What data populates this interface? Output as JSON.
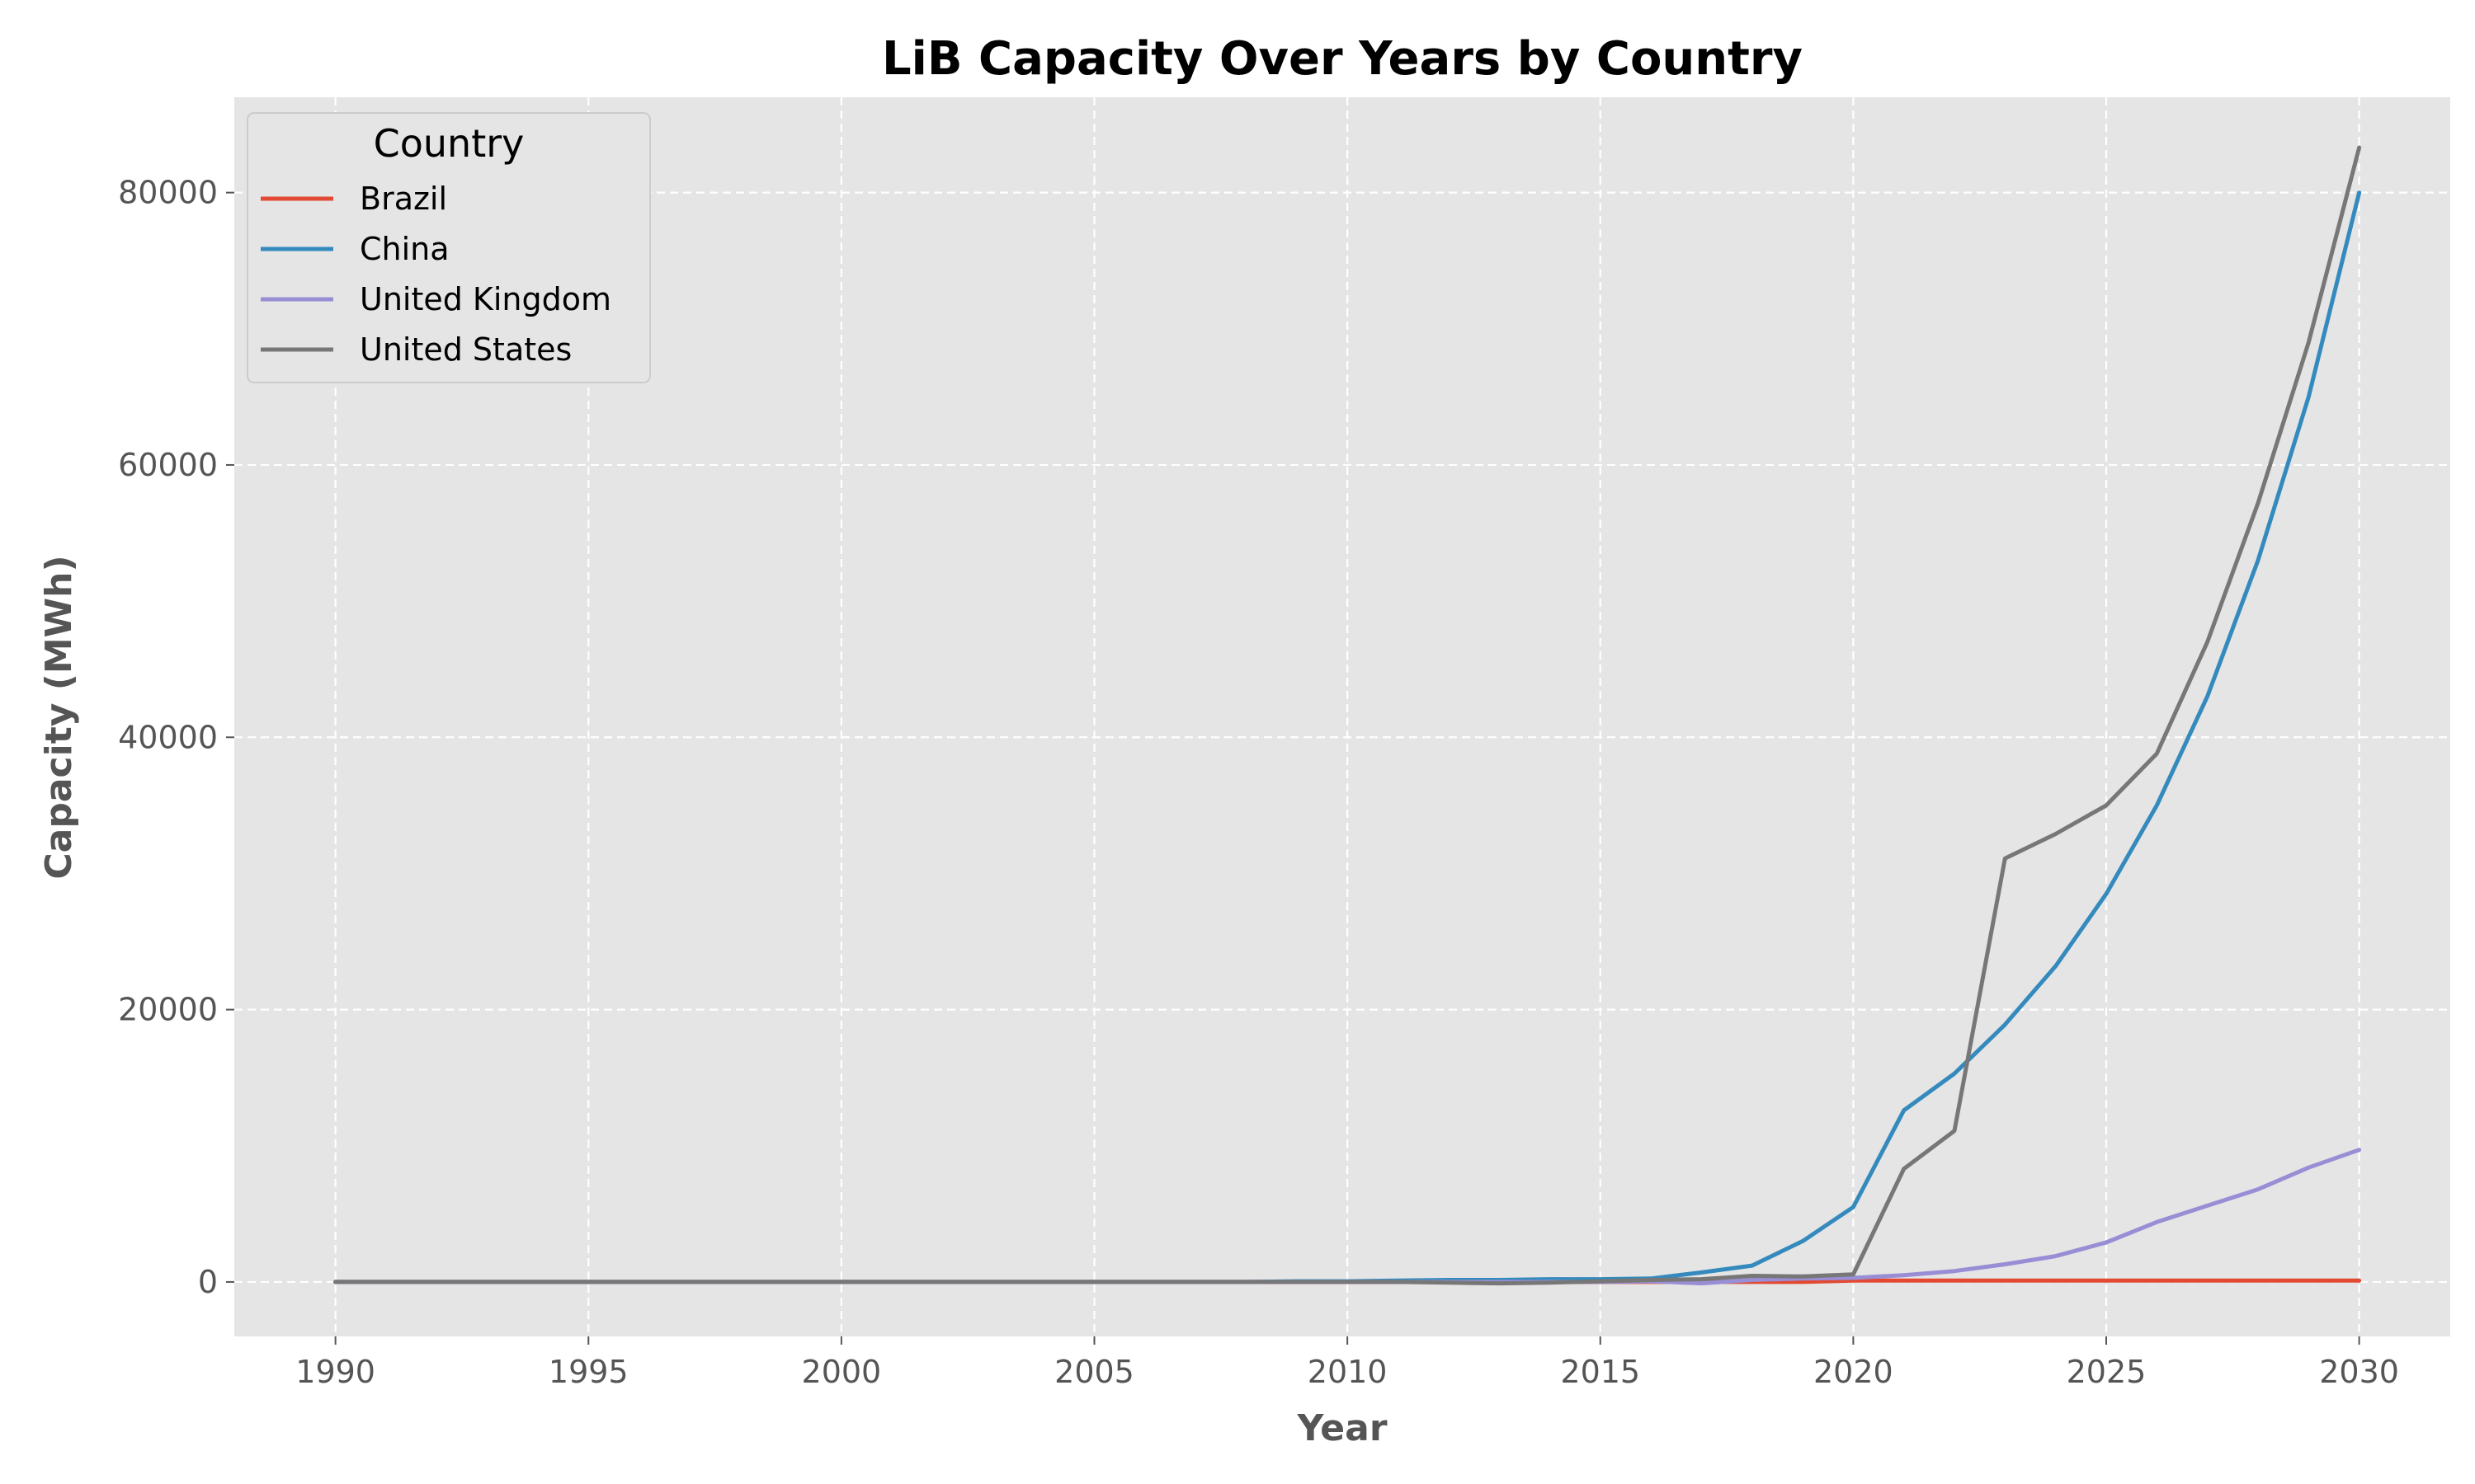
{
  "chart_data": {
    "type": "line",
    "title": "LiB Capacity Over Years by Country",
    "xlabel": "Year",
    "ylabel": "Capacity (MWh)",
    "xlim": [
      1988,
      2031.8
    ],
    "ylim": [
      -4000,
      87000
    ],
    "xticks": [
      1990,
      1995,
      2000,
      2005,
      2010,
      2015,
      2020,
      2025,
      2030
    ],
    "yticks": [
      0,
      20000,
      40000,
      60000,
      80000
    ],
    "grid": true,
    "legend": {
      "title": "Country",
      "placement": "top-left"
    },
    "x": [
      1990,
      1991,
      1992,
      1993,
      1994,
      1995,
      1996,
      1997,
      1998,
      1999,
      2000,
      2001,
      2002,
      2003,
      2004,
      2005,
      2006,
      2007,
      2008,
      2009,
      2010,
      2011,
      2012,
      2013,
      2014,
      2015,
      2016,
      2017,
      2018,
      2019,
      2020,
      2021,
      2022,
      2023,
      2024,
      2025,
      2026,
      2027,
      2028,
      2029,
      2030
    ],
    "series": [
      {
        "name": "Brazil",
        "color": "#E24A33",
        "values": [
          0,
          0,
          0,
          0,
          0,
          0,
          0,
          0,
          0,
          0,
          0,
          0,
          0,
          0,
          0,
          0,
          0,
          0,
          0,
          0,
          0,
          0,
          0,
          0,
          0,
          0,
          0,
          0,
          0,
          0,
          100,
          100,
          100,
          100,
          100,
          100,
          100,
          100,
          100,
          100,
          100
        ]
      },
      {
        "name": "China",
        "color": "#348ABD",
        "values": [
          0,
          0,
          0,
          0,
          0,
          0,
          0,
          0,
          0,
          0,
          0,
          0,
          0,
          0,
          0,
          0,
          0,
          0,
          0,
          50,
          50,
          100,
          150,
          150,
          200,
          200,
          250,
          700,
          1200,
          3000,
          5500,
          12600,
          15300,
          18900,
          23200,
          28500,
          35000,
          43000,
          53000,
          65000,
          80000
        ]
      },
      {
        "name": "United Kingdom",
        "color": "#988ED5",
        "values": [
          0,
          0,
          0,
          0,
          0,
          0,
          0,
          0,
          0,
          0,
          0,
          0,
          0,
          0,
          0,
          0,
          0,
          0,
          0,
          0,
          0,
          0,
          0,
          0,
          0,
          0,
          50,
          -100,
          150,
          250,
          300,
          500,
          800,
          1300,
          1900,
          2900,
          4400,
          5600,
          6800,
          8400,
          9700
        ]
      },
      {
        "name": "United States",
        "color": "#777777",
        "values": [
          0,
          0,
          0,
          0,
          0,
          0,
          0,
          0,
          0,
          0,
          0,
          0,
          0,
          0,
          0,
          0,
          0,
          0,
          0,
          0,
          0,
          0,
          -50,
          -100,
          -50,
          50,
          150,
          200,
          450,
          400,
          550,
          8300,
          11100,
          31100,
          32900,
          35000,
          38800,
          47000,
          57200,
          69000,
          83300
        ]
      }
    ]
  }
}
